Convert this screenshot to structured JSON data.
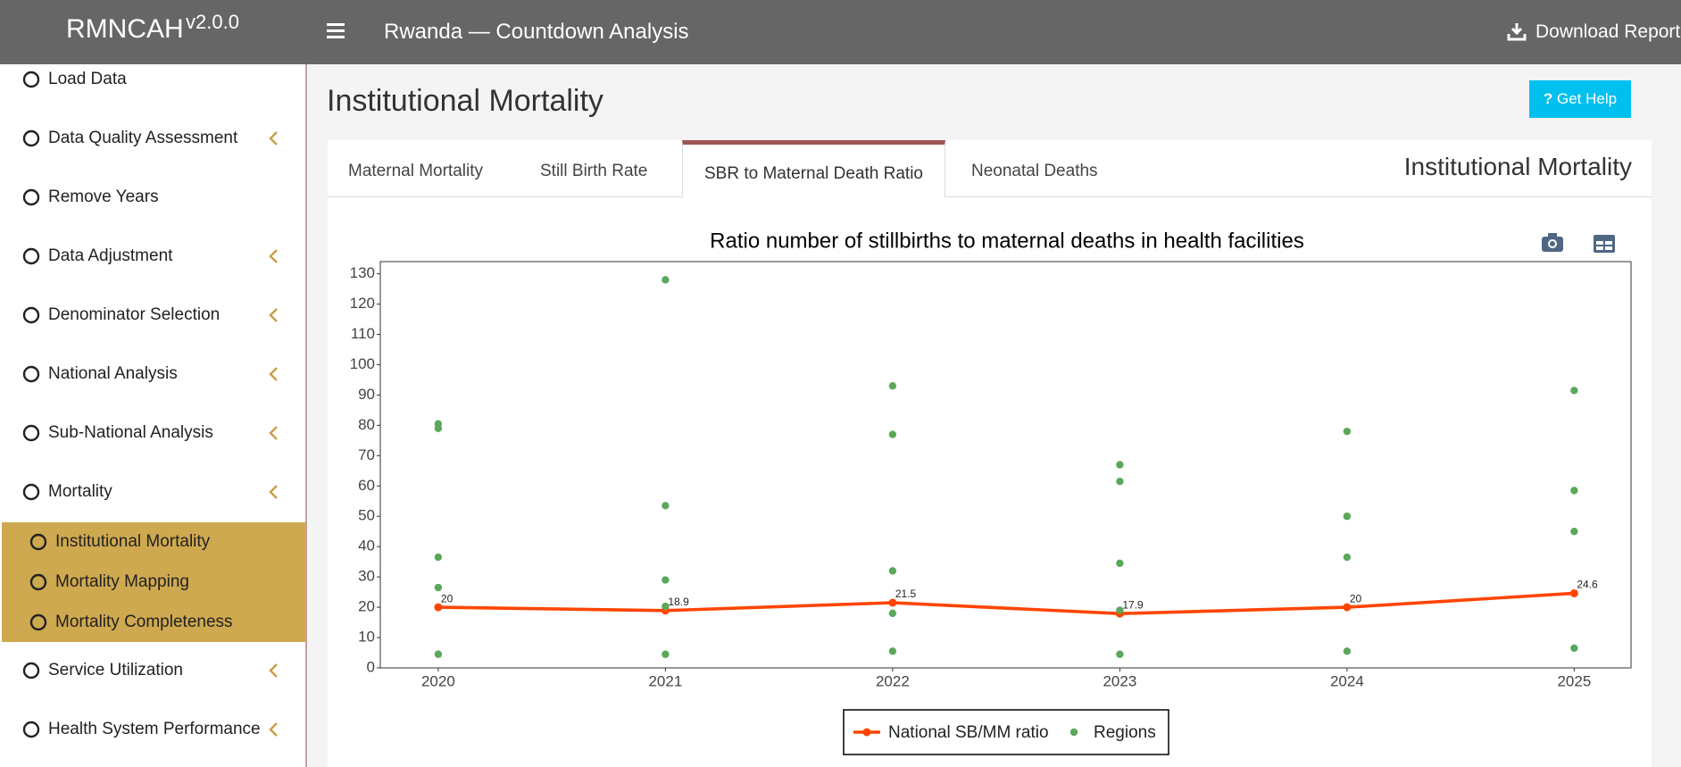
{
  "header": {
    "brand": "RMNCAH",
    "version": "v2.0.0",
    "title": "Rwanda — Countdown Analysis",
    "download": "Download Report"
  },
  "sidebar": {
    "items": [
      "Load Data",
      "Data Quality Assessment",
      "Remove Years",
      "Data Adjustment",
      "Denominator Selection",
      "National Analysis",
      "Sub-National Analysis",
      "Mortality"
    ],
    "subitems": [
      "Institutional Mortality",
      "Mortality Mapping",
      "Mortality Completeness"
    ],
    "after": [
      "Service Utilization",
      "Health System Performance"
    ]
  },
  "page": {
    "title": "Institutional Mortality",
    "help": "Get Help",
    "box_title": "Institutional Mortality",
    "tabs": [
      "Maternal Mortality",
      "Still Birth Rate",
      "SBR to Maternal Death Ratio",
      "Neonatal Deaths"
    ]
  },
  "chart_data": {
    "type": "line",
    "title": "Ratio number of stillbirths to maternal deaths in health facilities",
    "xlim": [
      2019.745,
      2025.25
    ],
    "xticks": [
      2020,
      2021,
      2022,
      2023,
      2024,
      2025
    ],
    "ylim": [
      0,
      134
    ],
    "yticks": [
      0,
      10,
      20,
      30,
      40,
      50,
      60,
      70,
      80,
      90,
      100,
      110,
      120,
      130
    ],
    "series": [
      {
        "name": "National SB/MM ratio",
        "color": "#ff4500",
        "mode": "lines+markers",
        "x": [
          2020,
          2021,
          2022,
          2023,
          2024,
          2025
        ],
        "values": [
          20,
          18.9,
          21.5,
          17.9,
          20,
          24.6
        ]
      },
      {
        "name": "Regions",
        "color": "#5aa85a",
        "mode": "markers",
        "x": [
          2020,
          2020,
          2020,
          2020,
          2020,
          2021,
          2021,
          2021,
          2021,
          2021,
          2022,
          2022,
          2022,
          2022,
          2022,
          2023,
          2023,
          2023,
          2023,
          2023,
          2024,
          2024,
          2024,
          2024,
          2025,
          2025,
          2025,
          2025
        ],
        "values": [
          80.5,
          79,
          36.5,
          26.5,
          4.5,
          128,
          53.5,
          29,
          20.3,
          4.5,
          93,
          77,
          32,
          18,
          5.5,
          67,
          61.5,
          34.5,
          19,
          4.5,
          78,
          50,
          36.5,
          5.5,
          91.5,
          58.5,
          45,
          6.5
        ]
      }
    ]
  }
}
